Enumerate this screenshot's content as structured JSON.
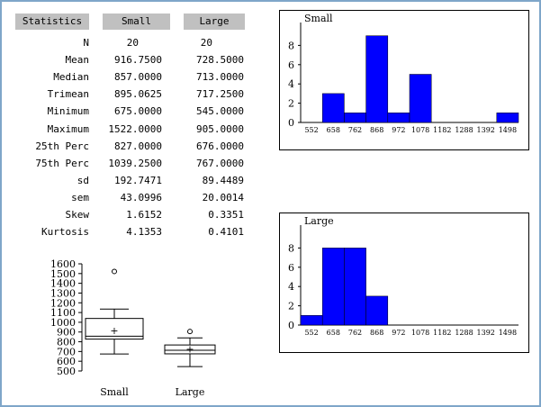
{
  "colors": {
    "bar": "#0000ff",
    "header_bg": "#c0c0c0",
    "window_border": "#7fa6c9"
  },
  "stats": {
    "header": {
      "label": "Statistics",
      "col1": "Small",
      "col2": "Large"
    },
    "rows": [
      {
        "label": "N",
        "small": "20",
        "large": "20"
      },
      {
        "label": "Mean",
        "small": "916.7500",
        "large": "728.5000"
      },
      {
        "label": "Median",
        "small": "857.0000",
        "large": "713.0000"
      },
      {
        "label": "Trimean",
        "small": "895.0625",
        "large": "717.2500"
      },
      {
        "label": "Minimum",
        "small": "675.0000",
        "large": "545.0000"
      },
      {
        "label": "Maximum",
        "small": "1522.0000",
        "large": "905.0000"
      },
      {
        "label": "25th Perc",
        "small": "827.0000",
        "large": "676.0000"
      },
      {
        "label": "75th Perc",
        "small": "1039.2500",
        "large": "767.0000"
      },
      {
        "label": "sd",
        "small": "192.7471",
        "large": "89.4489"
      },
      {
        "label": "sem",
        "small": "43.0996",
        "large": "20.0014"
      },
      {
        "label": "Skew",
        "small": "1.6152",
        "large": "0.3351"
      },
      {
        "label": "Kurtosis",
        "small": "4.1353",
        "large": "0.4101"
      }
    ]
  },
  "chart_data": [
    {
      "type": "bar",
      "title": "Small",
      "categories": [
        "552",
        "658",
        "762",
        "868",
        "972",
        "1078",
        "1182",
        "1288",
        "1392",
        "1498"
      ],
      "values": [
        0,
        3,
        1,
        9,
        1,
        5,
        0,
        0,
        0,
        1
      ],
      "ylim": [
        0,
        10
      ],
      "yticks": [
        "0",
        "2",
        "4",
        "6",
        "8"
      ]
    },
    {
      "type": "bar",
      "title": "Large",
      "categories": [
        "552",
        "658",
        "762",
        "868",
        "972",
        "1078",
        "1182",
        "1288",
        "1392",
        "1498"
      ],
      "values": [
        1,
        8,
        8,
        3,
        0,
        0,
        0,
        0,
        0,
        0
      ],
      "ylim": [
        0,
        10
      ],
      "yticks": [
        "0",
        "2",
        "4",
        "6",
        "8"
      ]
    },
    {
      "type": "boxplot",
      "categories": [
        "Small",
        "Large"
      ],
      "yticks": [
        "500",
        "600",
        "700",
        "800",
        "900",
        "1000",
        "1100",
        "1200",
        "1300",
        "1400",
        "1500",
        "1600"
      ],
      "ylim": [
        500,
        1600
      ],
      "series": [
        {
          "name": "Small",
          "whisker_low": 675,
          "q1": 827,
          "median": 857,
          "q3": 1039.25,
          "whisker_high": 1135,
          "mean": 916.75,
          "outliers": [
            1522
          ]
        },
        {
          "name": "Large",
          "whisker_low": 545,
          "q1": 676,
          "median": 713,
          "q3": 767,
          "whisker_high": 840,
          "mean": 728.5,
          "outliers": [
            905
          ]
        }
      ]
    }
  ]
}
